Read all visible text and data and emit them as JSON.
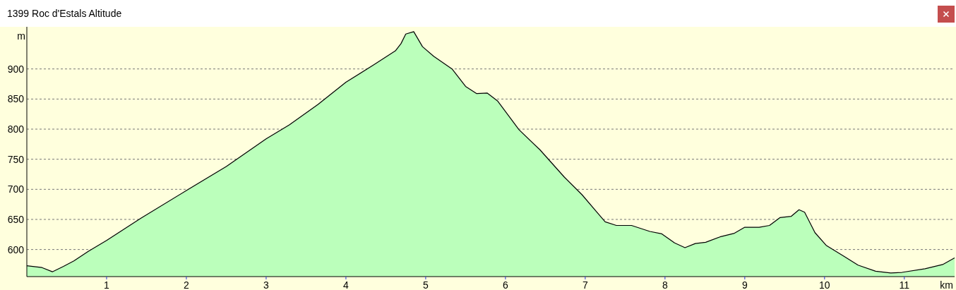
{
  "chart_data": {
    "type": "area",
    "title": "1399 Roc d'Estals Altitude",
    "xlabel": "km",
    "ylabel": "m",
    "x": [
      0,
      0.19,
      0.32,
      0.46,
      0.59,
      0.77,
      1.0,
      1.43,
      2.0,
      2.5,
      3.0,
      3.29,
      3.65,
      4.0,
      4.35,
      4.62,
      4.69,
      4.75,
      4.85,
      4.96,
      5.1,
      5.33,
      5.5,
      5.64,
      5.77,
      5.9,
      6.17,
      6.43,
      6.74,
      6.96,
      7.14,
      7.25,
      7.39,
      7.58,
      7.81,
      7.96,
      8.12,
      8.25,
      8.38,
      8.51,
      8.69,
      8.87,
      9.0,
      9.18,
      9.31,
      9.44,
      9.58,
      9.68,
      9.75,
      9.88,
      10.02,
      10.24,
      10.42,
      10.64,
      10.83,
      10.97,
      11.26,
      11.48,
      11.63
    ],
    "series": [
      {
        "color": "#bbffbb",
        "values": [
          573,
          570,
          563,
          572,
          581,
          597,
          615,
          652,
          698,
          738,
          784,
          807,
          841,
          878,
          907,
          930,
          942,
          958,
          962,
          937,
          921,
          900,
          871,
          859,
          860,
          847,
          799,
          766,
          720,
          691,
          663,
          646,
          640,
          640,
          630,
          626,
          611,
          603,
          610,
          612,
          621,
          627,
          637,
          637,
          640,
          653,
          655,
          666,
          662,
          628,
          607,
          589,
          574,
          564,
          561,
          562,
          568,
          575,
          586
        ]
      }
    ],
    "xlim": [
      0,
      11.63
    ],
    "xticks": [
      1,
      2,
      3,
      4,
      5,
      6,
      7,
      8,
      9,
      10,
      11
    ],
    "ylim": [
      555,
      970
    ],
    "yticks": [
      600,
      650,
      700,
      750,
      800,
      850,
      900
    ],
    "grid": "y"
  }
}
